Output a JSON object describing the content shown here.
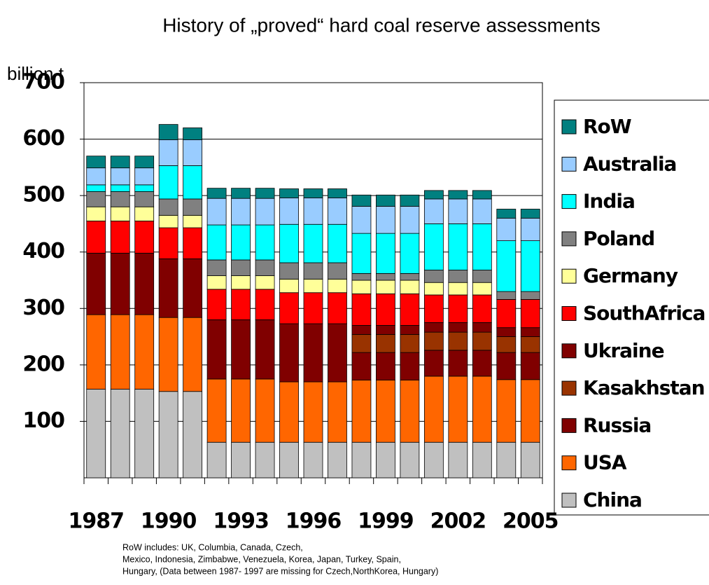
{
  "chart_data": {
    "type": "stacked_bar",
    "title": "History of „proved“ hard coal reserve assessments",
    "y_axis_label": "billion t",
    "categories": [
      "1987",
      null,
      null,
      "1990",
      null,
      null,
      "1993",
      null,
      null,
      "1996",
      null,
      null,
      "1999",
      null,
      null,
      "2002",
      null,
      null,
      "2005"
    ],
    "ylim": [
      0,
      700
    ],
    "yticks": [
      100,
      200,
      300,
      400,
      500,
      600,
      700
    ],
    "grid": true,
    "legend": "right",
    "series": [
      {
        "name": "China",
        "color": "#c0c0c0",
        "values": [
          157,
          157,
          157,
          153,
          153,
          63,
          63,
          63,
          63,
          63,
          63,
          63,
          63,
          63,
          63,
          63,
          63,
          63,
          63
        ]
      },
      {
        "name": "USA",
        "color": "#ff6600",
        "values": [
          132,
          132,
          132,
          131,
          131,
          112,
          112,
          112,
          107,
          107,
          107,
          110,
          110,
          110,
          117,
          117,
          117,
          111,
          111
        ]
      },
      {
        "name": "Russia",
        "color": "#800000",
        "values": [
          109,
          109,
          109,
          104,
          104,
          105,
          105,
          105,
          103,
          103,
          103,
          49,
          49,
          49,
          46,
          46,
          46,
          48,
          48
        ]
      },
      {
        "name": "Kasakhstan",
        "color": "#993300",
        "values": [
          0,
          0,
          0,
          0,
          0,
          0,
          0,
          0,
          0,
          0,
          0,
          32,
          32,
          32,
          32,
          32,
          32,
          28,
          28
        ]
      },
      {
        "name": "Ukraine",
        "color": "#800000",
        "values": [
          0,
          0,
          0,
          0,
          0,
          0,
          0,
          0,
          0,
          0,
          0,
          16,
          16,
          16,
          17,
          17,
          17,
          16,
          16
        ]
      },
      {
        "name": "SouthAfrica",
        "color": "#ff0000",
        "values": [
          57,
          57,
          57,
          55,
          55,
          54,
          54,
          54,
          55,
          55,
          55,
          56,
          56,
          56,
          49,
          49,
          49,
          50,
          50
        ]
      },
      {
        "name": "Germany",
        "color": "#ffff99",
        "values": [
          25,
          25,
          25,
          22,
          22,
          24,
          24,
          24,
          24,
          24,
          24,
          24,
          24,
          24,
          22,
          22,
          22,
          0,
          0
        ]
      },
      {
        "name": "Poland",
        "color": "#808080",
        "values": [
          27,
          27,
          27,
          29,
          29,
          28,
          28,
          28,
          29,
          29,
          29,
          12,
          12,
          12,
          22,
          22,
          22,
          14,
          14
        ]
      },
      {
        "name": "India",
        "color": "#00ffff",
        "values": [
          12,
          12,
          12,
          59,
          59,
          62,
          62,
          62,
          68,
          68,
          68,
          71,
          71,
          71,
          82,
          82,
          82,
          90,
          90
        ]
      },
      {
        "name": "Australia",
        "color": "#99ccff",
        "values": [
          30,
          30,
          30,
          46,
          46,
          47,
          47,
          47,
          47,
          47,
          47,
          48,
          48,
          48,
          44,
          44,
          44,
          40,
          40
        ]
      },
      {
        "name": "RoW",
        "color": "#008080",
        "values": [
          21,
          21,
          21,
          27,
          21,
          18,
          18,
          18,
          16,
          16,
          16,
          20,
          20,
          20,
          15,
          15,
          15,
          16,
          16
        ]
      }
    ],
    "note": [
      "RoW includes: UK, Columbia, Canada, Czech,",
      "Mexico, Indonesia, Zimbabwe, Venezuela, Korea, Japan, Turkey, Spain,",
      "Hungary, (Data between 1987- 1997 are missing for Czech,NorthKorea, Hungary)"
    ]
  }
}
